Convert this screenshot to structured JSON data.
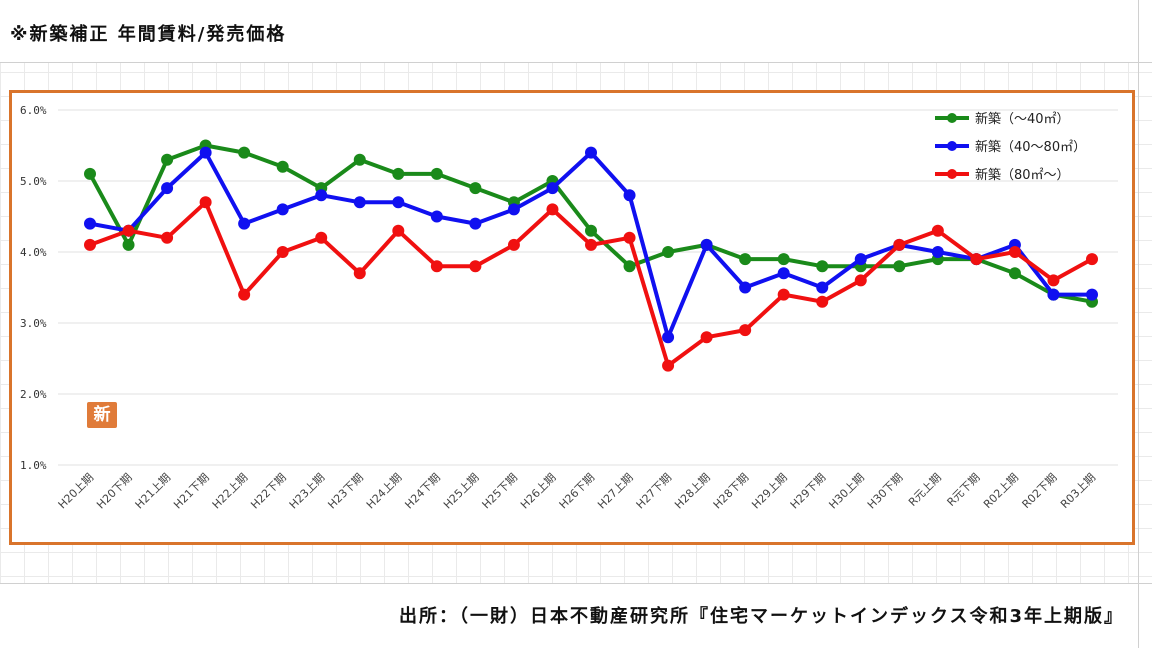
{
  "page": {
    "title": "※新築補正 年間賃料/発売価格",
    "source": "出所：（一財）日本不動産研究所『住宅マーケットインデックス令和3年上期版』",
    "badge": "新"
  },
  "chart_data": {
    "type": "line",
    "title": "",
    "xlabel": "",
    "ylabel": "",
    "ylim": [
      1.0,
      6.0
    ],
    "yticks": [
      "6.0%",
      "5.0%",
      "4.0%",
      "3.0%",
      "2.0%",
      "1.0%"
    ],
    "ytick_values": [
      6.0,
      5.0,
      4.0,
      3.0,
      2.0,
      1.0
    ],
    "grid": "horizontal",
    "legend_position": "top-right",
    "categories": [
      "H20上期",
      "H20下期",
      "H21上期",
      "H21下期",
      "H22上期",
      "H22下期",
      "H23上期",
      "H23下期",
      "H24上期",
      "H24下期",
      "H25上期",
      "H25下期",
      "H26上期",
      "H26下期",
      "H27上期",
      "H27下期",
      "H28上期",
      "H28下期",
      "H29上期",
      "H29下期",
      "H30上期",
      "H30下期",
      "R元上期",
      "R元下期",
      "R02上期",
      "R02下期",
      "R03上期"
    ],
    "series": [
      {
        "name": "新築（～40㎡）",
        "color": "#1a8a1a",
        "values": [
          5.1,
          4.1,
          5.3,
          5.5,
          5.4,
          5.2,
          4.9,
          5.3,
          5.1,
          5.1,
          4.9,
          4.7,
          5.0,
          4.3,
          3.8,
          4.0,
          4.1,
          3.9,
          3.9,
          3.8,
          3.8,
          3.8,
          3.9,
          3.9,
          3.7,
          3.4,
          3.3
        ]
      },
      {
        "name": "新築（40～80㎡）",
        "color": "#1010f0",
        "values": [
          4.4,
          4.3,
          4.9,
          5.4,
          4.4,
          4.6,
          4.8,
          4.7,
          4.7,
          4.5,
          4.4,
          4.6,
          4.9,
          5.4,
          4.8,
          2.8,
          4.1,
          3.5,
          3.7,
          3.5,
          3.9,
          4.1,
          4.0,
          3.9,
          4.1,
          3.4,
          3.4
        ]
      },
      {
        "name": "新築（80㎡～）",
        "color": "#f01010",
        "values": [
          4.1,
          4.3,
          4.2,
          4.7,
          3.4,
          4.0,
          4.2,
          3.7,
          4.3,
          3.8,
          3.8,
          4.1,
          4.6,
          4.1,
          4.2,
          2.4,
          2.8,
          2.9,
          3.4,
          3.3,
          3.6,
          4.1,
          4.3,
          3.9,
          4.0,
          3.6,
          3.9
        ]
      }
    ]
  }
}
